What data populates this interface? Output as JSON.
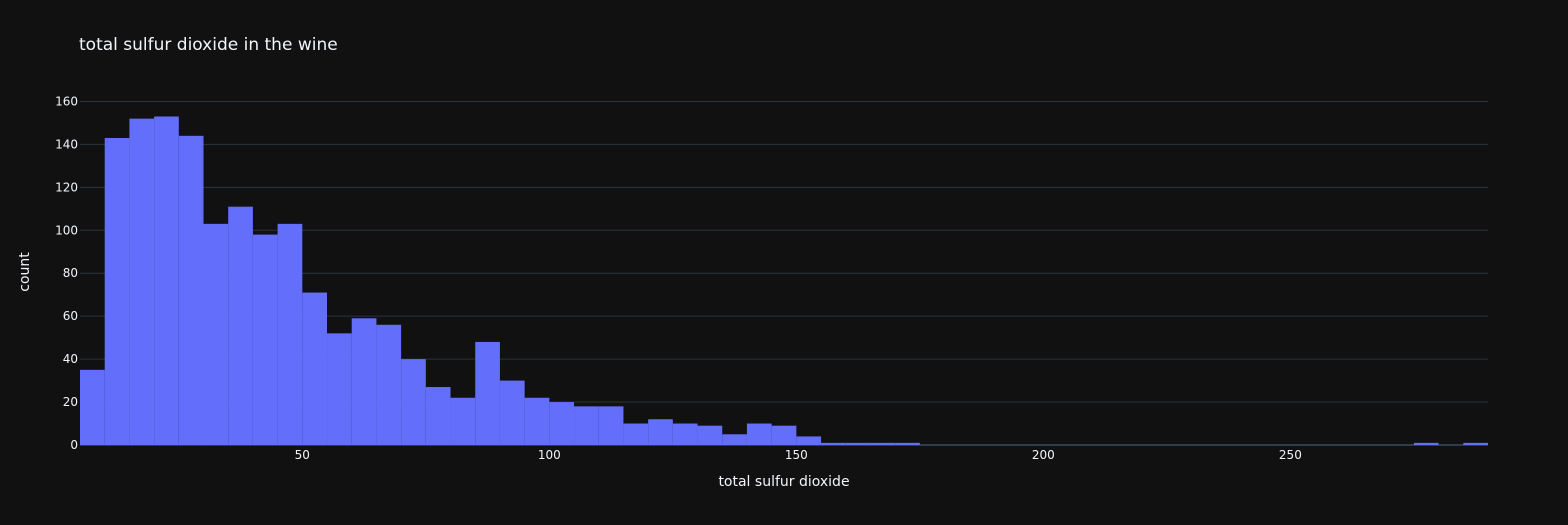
{
  "theme": {
    "background": "#111111",
    "bar_color": "#636efa",
    "grid_color": "#283442",
    "text_color": "#f2f5fa"
  },
  "chart_data": {
    "type": "bar",
    "title": "total sulfur dioxide in the wine",
    "xlabel": "total sulfur dioxide",
    "ylabel": "count",
    "bin_width": 5,
    "bin_start": 5,
    "xlim": [
      5,
      290
    ],
    "ylim": [
      0,
      170
    ],
    "x_ticks": [
      50,
      100,
      150,
      200,
      250
    ],
    "y_ticks": [
      0,
      20,
      40,
      60,
      80,
      100,
      120,
      140,
      160
    ],
    "grid": true,
    "values": [
      35,
      143,
      152,
      153,
      144,
      103,
      111,
      98,
      103,
      71,
      52,
      59,
      56,
      40,
      27,
      22,
      48,
      30,
      22,
      20,
      18,
      18,
      10,
      12,
      10,
      9,
      5,
      10,
      9,
      4,
      1,
      1,
      1,
      1,
      0,
      0,
      0,
      0,
      0,
      0,
      0,
      0,
      0,
      0,
      0,
      0,
      0,
      0,
      0,
      0,
      0,
      0,
      0,
      0,
      1,
      0,
      1
    ]
  }
}
